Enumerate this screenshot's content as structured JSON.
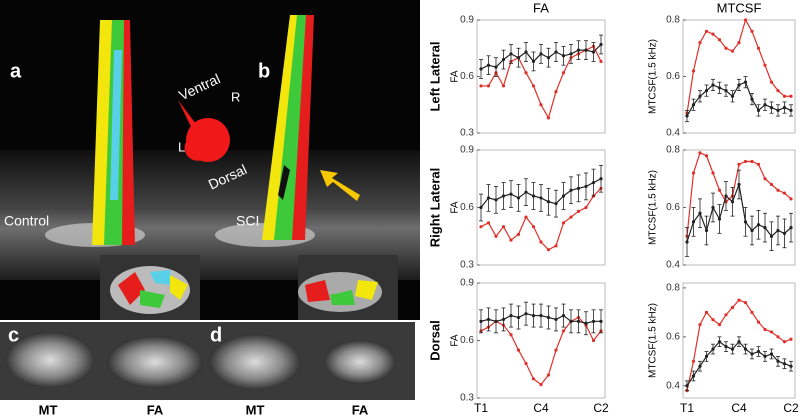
{
  "figure_labels": {
    "a": "a",
    "b": "b",
    "ventral": "Ventral",
    "r": "R",
    "l": "L",
    "dorsal": "Dorsal",
    "control": "Control",
    "sci": "SCI",
    "c": "c",
    "d": "d",
    "mt1": "MT",
    "fa1": "FA",
    "mt2": "MT",
    "fa2": "FA"
  },
  "chart_data": [
    {
      "type": "line",
      "title": "FA",
      "row_label": "Left Lateral",
      "ylabel": "FA",
      "categories": [
        null,
        null,
        null,
        null,
        null,
        null,
        null,
        null,
        null,
        null,
        null,
        null,
        null,
        null,
        null,
        null,
        null
      ],
      "ylim": [
        0.3,
        0.9
      ],
      "yticks": [
        0.3,
        0.6,
        0.9
      ],
      "series": [
        {
          "color": "#e0302a",
          "values": [
            0.55,
            0.55,
            0.62,
            0.55,
            0.68,
            0.7,
            0.62,
            0.55,
            0.45,
            0.38,
            0.52,
            0.62,
            0.7,
            0.72,
            0.74,
            0.76,
            0.68
          ]
        },
        {
          "color": "#222222",
          "values": [
            0.64,
            0.66,
            0.65,
            0.69,
            0.72,
            0.7,
            0.73,
            0.68,
            0.72,
            0.7,
            0.73,
            0.71,
            0.72,
            0.74,
            0.74,
            0.73,
            0.77
          ],
          "errors": [
            0.05,
            0.05,
            0.05,
            0.05,
            0.05,
            0.05,
            0.05,
            0.05,
            0.05,
            0.05,
            0.05,
            0.05,
            0.05,
            0.05,
            0.05,
            0.05,
            0.05
          ]
        }
      ]
    },
    {
      "type": "line",
      "title": "MTCSF",
      "ylabel": "MTCSF(1.5 kHz)",
      "categories": [
        null,
        null,
        null,
        null,
        null,
        null,
        null,
        null,
        null,
        null,
        null,
        null,
        null,
        null,
        null,
        null,
        null
      ],
      "ylim": [
        0.4,
        0.8
      ],
      "yticks": [
        0.4,
        0.6,
        0.8
      ],
      "series": [
        {
          "color": "#e0302a",
          "values": [
            0.47,
            0.62,
            0.72,
            0.76,
            0.75,
            0.73,
            0.7,
            0.69,
            0.72,
            0.8,
            0.76,
            0.7,
            0.64,
            0.58,
            0.55,
            0.53,
            0.53
          ]
        },
        {
          "color": "#222222",
          "values": [
            0.46,
            0.5,
            0.53,
            0.55,
            0.57,
            0.56,
            0.55,
            0.53,
            0.57,
            0.58,
            0.52,
            0.48,
            0.5,
            0.49,
            0.48,
            0.49,
            0.48
          ],
          "errors": [
            0.02,
            0.02,
            0.02,
            0.02,
            0.02,
            0.02,
            0.02,
            0.02,
            0.02,
            0.02,
            0.02,
            0.02,
            0.02,
            0.02,
            0.02,
            0.02,
            0.02
          ]
        }
      ]
    },
    {
      "type": "line",
      "row_label": "Right Lateral",
      "ylabel": "FA",
      "categories": [
        null,
        null,
        null,
        null,
        null,
        null,
        null,
        null,
        null,
        null,
        null,
        null,
        null,
        null,
        null,
        null,
        null
      ],
      "ylim": [
        0.3,
        0.9
      ],
      "yticks": [
        0.3,
        0.6,
        0.9
      ],
      "series": [
        {
          "color": "#e0302a",
          "values": [
            0.5,
            0.52,
            0.45,
            0.5,
            0.43,
            0.46,
            0.55,
            0.5,
            0.42,
            0.38,
            0.4,
            0.52,
            0.55,
            0.58,
            0.6,
            0.66,
            0.7
          ]
        },
        {
          "color": "#222222",
          "values": [
            0.6,
            0.65,
            0.64,
            0.66,
            0.67,
            0.65,
            0.68,
            0.66,
            0.65,
            0.63,
            0.62,
            0.66,
            0.69,
            0.7,
            0.71,
            0.73,
            0.75
          ],
          "errors": [
            0.07,
            0.07,
            0.07,
            0.07,
            0.07,
            0.07,
            0.07,
            0.07,
            0.07,
            0.07,
            0.07,
            0.07,
            0.07,
            0.07,
            0.07,
            0.07,
            0.07
          ]
        }
      ]
    },
    {
      "type": "line",
      "ylabel": "MTCSF(1.5 kHz)",
      "categories": [
        null,
        null,
        null,
        null,
        null,
        null,
        null,
        null,
        null,
        null,
        null,
        null,
        null,
        null,
        null,
        null,
        null
      ],
      "ylim": [
        0.4,
        0.8
      ],
      "yticks": [
        0.4,
        0.6,
        0.8
      ],
      "series": [
        {
          "color": "#e0302a",
          "values": [
            0.5,
            0.72,
            0.79,
            0.78,
            0.72,
            0.66,
            0.62,
            0.64,
            0.75,
            0.76,
            0.76,
            0.75,
            0.7,
            0.68,
            0.66,
            0.65,
            0.63
          ]
        },
        {
          "color": "#222222",
          "values": [
            0.48,
            0.55,
            0.58,
            0.52,
            0.6,
            0.56,
            0.64,
            0.62,
            0.68,
            0.55,
            0.52,
            0.54,
            0.53,
            0.5,
            0.52,
            0.51,
            0.53
          ],
          "errors": [
            0.05,
            0.05,
            0.05,
            0.05,
            0.05,
            0.05,
            0.05,
            0.05,
            0.05,
            0.05,
            0.05,
            0.05,
            0.05,
            0.05,
            0.05,
            0.05,
            0.05
          ]
        }
      ]
    },
    {
      "type": "line",
      "row_label": "Dorsal",
      "ylabel": "FA",
      "categories": [
        "T1",
        null,
        null,
        null,
        null,
        null,
        null,
        null,
        "C4",
        null,
        null,
        null,
        null,
        null,
        null,
        null,
        "C2"
      ],
      "ylim": [
        0.3,
        0.9
      ],
      "yticks": [
        0.3,
        0.6,
        0.9
      ],
      "series": [
        {
          "color": "#e0302a",
          "values": [
            0.65,
            0.67,
            0.7,
            0.68,
            0.63,
            0.55,
            0.48,
            0.4,
            0.37,
            0.42,
            0.55,
            0.65,
            0.7,
            0.72,
            0.68,
            0.6,
            0.65
          ]
        },
        {
          "color": "#222222",
          "values": [
            0.7,
            0.71,
            0.7,
            0.71,
            0.73,
            0.72,
            0.74,
            0.73,
            0.73,
            0.72,
            0.71,
            0.73,
            0.7,
            0.7,
            0.69,
            0.7,
            0.7
          ],
          "errors": [
            0.06,
            0.06,
            0.06,
            0.06,
            0.06,
            0.06,
            0.06,
            0.06,
            0.06,
            0.06,
            0.06,
            0.06,
            0.06,
            0.06,
            0.06,
            0.06,
            0.06
          ]
        }
      ]
    },
    {
      "type": "line",
      "ylabel": "MTCSF(1.5 kHz)",
      "categories": [
        "T1",
        null,
        null,
        null,
        null,
        null,
        null,
        null,
        "C4",
        null,
        null,
        null,
        null,
        null,
        null,
        null,
        "C2"
      ],
      "ylim": [
        0.35,
        0.82
      ],
      "yticks": [
        0.4,
        0.6,
        0.8
      ],
      "series": [
        {
          "color": "#e0302a",
          "values": [
            0.38,
            0.5,
            0.65,
            0.7,
            0.67,
            0.65,
            0.69,
            0.72,
            0.75,
            0.74,
            0.7,
            0.66,
            0.63,
            0.62,
            0.6,
            0.58,
            0.59
          ]
        },
        {
          "color": "#222222",
          "values": [
            0.4,
            0.44,
            0.48,
            0.52,
            0.55,
            0.58,
            0.56,
            0.55,
            0.58,
            0.55,
            0.53,
            0.54,
            0.52,
            0.53,
            0.5,
            0.49,
            0.48
          ],
          "errors": [
            0.02,
            0.02,
            0.02,
            0.02,
            0.02,
            0.02,
            0.02,
            0.02,
            0.02,
            0.02,
            0.02,
            0.02,
            0.02,
            0.02,
            0.02,
            0.02,
            0.02
          ]
        }
      ]
    }
  ]
}
